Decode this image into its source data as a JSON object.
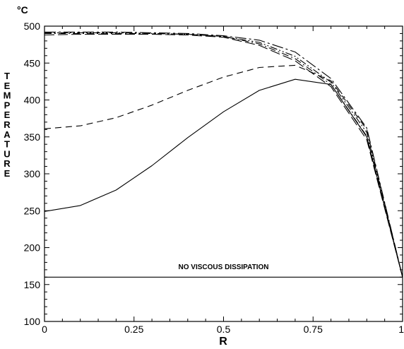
{
  "chart_data": {
    "type": "line",
    "unit_label": "°C",
    "xlabel": "R",
    "ylabel": "TEMPERATURE",
    "xlim": [
      0,
      1
    ],
    "ylim": [
      100,
      500
    ],
    "x_ticks": [
      0,
      0.25,
      0.5,
      0.75,
      1
    ],
    "x_tick_labels": [
      "0",
      "0.25",
      "0.5",
      "0.75",
      "1"
    ],
    "y_ticks": [
      100,
      150,
      200,
      250,
      300,
      350,
      400,
      450,
      500
    ],
    "y_tick_labels": [
      "100",
      "150",
      "200",
      "250",
      "300",
      "350",
      "400",
      "450",
      "500"
    ],
    "grid": false,
    "annotation": {
      "text": "NO VISCOUS DISSIPATION",
      "x": 0.5,
      "y": 165
    },
    "series": [
      {
        "style": "solid",
        "x": [
          0,
          1
        ],
        "y": [
          160,
          160
        ]
      },
      {
        "style": "solid",
        "x": [
          0,
          0.1,
          0.2,
          0.3,
          0.4,
          0.5,
          0.6,
          0.7,
          0.8,
          0.9,
          1
        ],
        "y": [
          249,
          257,
          278,
          311,
          349,
          384,
          413,
          428,
          421,
          350,
          160
        ]
      },
      {
        "style": "dashed",
        "x": [
          0,
          0.1,
          0.2,
          0.3,
          0.4,
          0.5,
          0.6,
          0.7,
          0.8,
          0.9,
          1
        ],
        "y": [
          361,
          365,
          376,
          393,
          413,
          431,
          444,
          447,
          426,
          360,
          160
        ]
      },
      {
        "style": "longdash",
        "x": [
          0,
          0.1,
          0.2,
          0.3,
          0.4,
          0.5,
          0.6,
          0.7,
          0.8,
          0.9,
          1
        ],
        "y": [
          488,
          489,
          489,
          489,
          488,
          485,
          474,
          453,
          418,
          346,
          160
        ]
      },
      {
        "style": "dashdot",
        "x": [
          0,
          0.1,
          0.2,
          0.3,
          0.4,
          0.5,
          0.6,
          0.7,
          0.8,
          0.9,
          1
        ],
        "y": [
          490,
          490,
          490,
          490,
          489,
          486,
          476,
          456,
          421,
          351,
          160
        ]
      },
      {
        "style": "dashdotdot",
        "x": [
          0,
          0.1,
          0.2,
          0.3,
          0.4,
          0.5,
          0.6,
          0.7,
          0.8,
          0.9,
          1
        ],
        "y": [
          491,
          491,
          491,
          490,
          489,
          486,
          478,
          459,
          424,
          356,
          160
        ]
      },
      {
        "style": "longdashdot",
        "x": [
          0,
          0.1,
          0.2,
          0.3,
          0.4,
          0.5,
          0.6,
          0.7,
          0.8,
          0.9,
          1
        ],
        "y": [
          492,
          492,
          492,
          491,
          490,
          487,
          481,
          465,
          429,
          362,
          160
        ]
      }
    ]
  }
}
